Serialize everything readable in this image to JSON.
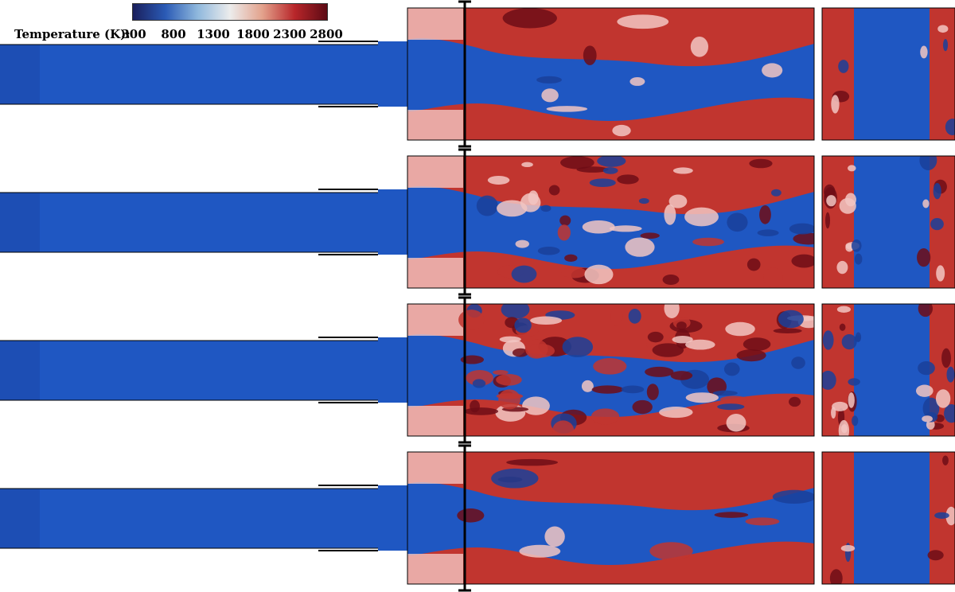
{
  "colorbar": {
    "title": "Temperature (K):",
    "ticks": [
      "300",
      "800",
      "1300",
      "1800",
      "2300",
      "2800"
    ],
    "colors": [
      "#1a1f5c",
      "#2a5ab5",
      "#8fb8dd",
      "#ececec",
      "#e3a28c",
      "#b8262a",
      "#5c0a14"
    ]
  },
  "palette": {
    "fresh_gas": "#1f57c2",
    "fresh_gas_dark": "#1a3f9a",
    "burnt_gas": "#c1352f",
    "burnt_gas_dark": "#6e0d16",
    "mixing": "#f2c6c2",
    "outline": "#000000"
  },
  "panels": [
    {
      "id": "case-1",
      "turbulence": "low"
    },
    {
      "id": "case-2",
      "turbulence": "high"
    },
    {
      "id": "case-3",
      "turbulence": "very-high"
    },
    {
      "id": "case-4",
      "turbulence": "low"
    }
  ]
}
